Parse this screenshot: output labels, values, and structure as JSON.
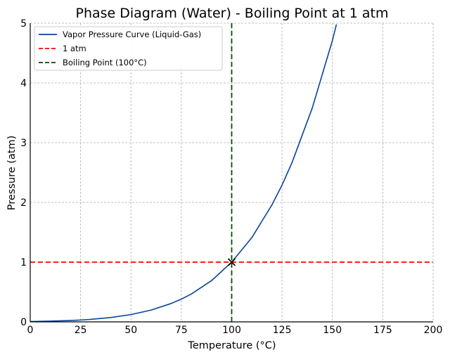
{
  "chart_data": {
    "type": "line",
    "title": "Phase Diagram (Water) - Boiling Point at 1 atm",
    "xlabel": "Temperature (°C)",
    "ylabel": "Pressure (atm)",
    "xlim": [
      0,
      200
    ],
    "ylim": [
      0,
      5
    ],
    "xticks": [
      0,
      25,
      50,
      75,
      100,
      125,
      150,
      175,
      200
    ],
    "yticks": [
      0,
      1,
      2,
      3,
      4,
      5
    ],
    "grid": true,
    "legend_position": "top-left",
    "series": [
      {
        "name": "Vapor Pressure Curve (Liquid-Gas)",
        "style": "solid",
        "color": "#08439b",
        "x": [
          0,
          10,
          20,
          25,
          30,
          40,
          50,
          60,
          70,
          75,
          80,
          90,
          100,
          110,
          120,
          125,
          130,
          140,
          150,
          152
        ],
        "y": [
          0.006,
          0.012,
          0.023,
          0.031,
          0.042,
          0.073,
          0.122,
          0.197,
          0.308,
          0.38,
          0.467,
          0.69,
          1.0,
          1.41,
          1.96,
          2.29,
          2.67,
          3.58,
          4.71,
          4.98
        ]
      },
      {
        "name": "1 atm",
        "style": "dashed",
        "color": "#ff0000",
        "orientation": "horizontal",
        "value": 1
      },
      {
        "name": "Boiling Point (100°C)",
        "style": "dashed",
        "color": "#004d00",
        "orientation": "vertical",
        "value": 100
      }
    ],
    "marker": {
      "x": 100,
      "y": 1,
      "symbol": "x",
      "color": "#000000"
    }
  }
}
